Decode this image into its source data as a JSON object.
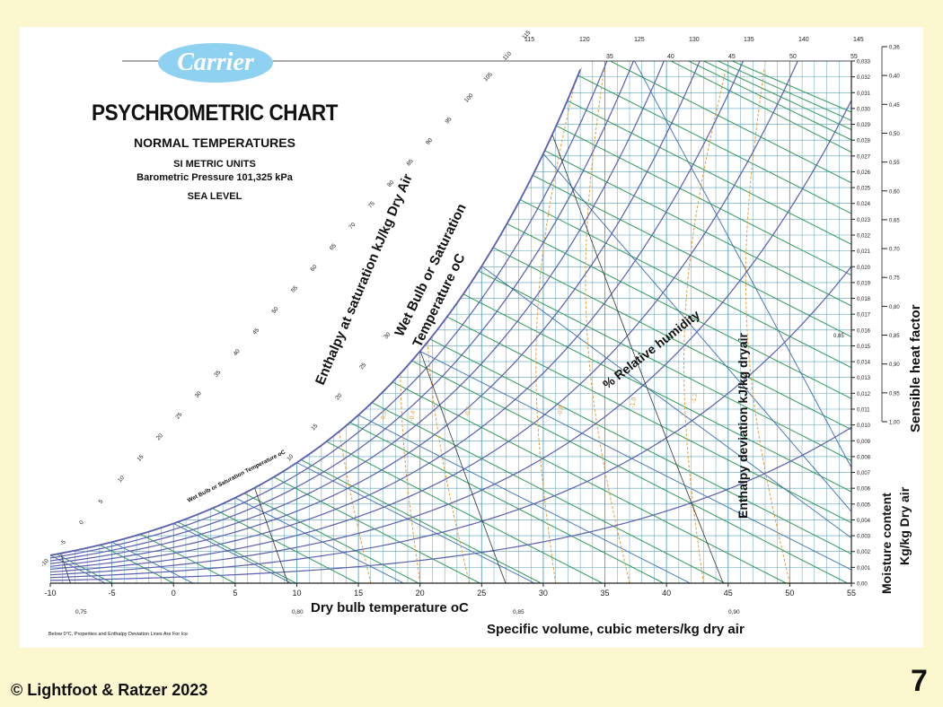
{
  "slide": {
    "copyright": "© Lightfoot & Ratzer 2023",
    "slide_number": "7",
    "background": "#fbf8d0"
  },
  "logo": {
    "text": "Carrier",
    "color": "#8fd1f0"
  },
  "title_block": {
    "title": "PSYCHROMETRIC CHART",
    "subtitle": "NORMAL TEMPERATURES",
    "units": "SI METRIC UNITS",
    "pressure": "Barometric Pressure 101,325 kPa",
    "level": "SEA LEVEL"
  },
  "chart_data": {
    "type": "line",
    "title": "PSYCHROMETRIC CHART",
    "xlabel": "Dry bulb temperature oC",
    "ylabel": "Moisture content Kg/kg Dry air",
    "xlim": [
      -10,
      55
    ],
    "ylim": [
      0,
      0.033
    ],
    "x_ticks": [
      -10,
      -5,
      0,
      5,
      10,
      15,
      20,
      25,
      30,
      35,
      40,
      45,
      50,
      55
    ],
    "x_tick_labels": [
      "-10",
      "-5",
      "0",
      "5",
      "10",
      "15",
      "20",
      "25",
      "30",
      "35",
      "40",
      "45",
      "50",
      "55"
    ],
    "y_ticks": [
      0,
      0.001,
      0.002,
      0.003,
      0.004,
      0.005,
      0.006,
      0.007,
      0.008,
      0.009,
      0.01,
      0.011,
      0.012,
      0.013,
      0.014,
      0.015,
      0.016,
      0.017,
      0.018,
      0.019,
      0.02,
      0.021,
      0.022,
      0.023,
      0.024,
      0.025,
      0.026,
      0.027,
      0.028,
      0.029,
      0.03,
      0.031,
      0.032,
      0.033
    ],
    "y_tick_labels": [
      "0,00",
      "0,001",
      "0,002",
      "0,003",
      "0,004",
      "0,005",
      "0,006",
      "0,007",
      "0,008",
      "0,009",
      "0,010",
      "0,011",
      "0,012",
      "0,013",
      "0,014",
      "0,015",
      "0,016",
      "0,017",
      "0,018",
      "0,019",
      "0,020",
      "0,021",
      "0,022",
      "0,023",
      "0,024",
      "0,025",
      "0,026",
      "0,027",
      "0,028",
      "0,029",
      "0,030",
      "0,031",
      "0,032",
      "0,033"
    ],
    "grid": true,
    "relative_humidity_lines": [
      10,
      20,
      30,
      40,
      50,
      60,
      70,
      80,
      90,
      100
    ],
    "enthalpy_scale": {
      "label": "Enthalpy at saturation kJ/kg Dry Air",
      "values": [
        -10,
        0,
        10,
        20,
        30,
        40,
        50,
        60,
        70,
        80,
        90,
        100,
        110,
        120,
        130,
        140
      ],
      "tick_labels": [
        "-10",
        "-5",
        "0",
        "5",
        "10",
        "15",
        "20",
        "25",
        "30",
        "35",
        "40",
        "45",
        "50",
        "55",
        "60",
        "65",
        "70",
        "75",
        "80",
        "85",
        "90",
        "95",
        "100",
        "105",
        "110",
        "115"
      ]
    },
    "top_enthalpy_labels": [
      "115",
      "120",
      "125",
      "130",
      "135",
      "140",
      "145"
    ],
    "top_wet_bulb_labels": [
      "35",
      "40",
      "45",
      "50",
      "55"
    ],
    "wet_bulb_label": "Wet Bulb or Saturation Temperature oC",
    "wet_bulb_label_small": "Wet Bulb or Saturation Temperature oC",
    "wet_bulb_scale_labels": [
      "10",
      "15",
      "20",
      "25",
      "30"
    ],
    "wet_bulb_lines": [
      -10,
      -5,
      0,
      5,
      10,
      15,
      20,
      25,
      30,
      35
    ],
    "rh_label": "% Relative humidity",
    "enthalpy_deviation_label": "Enthalpy deviation kJ/kg dryair",
    "enthalpy_deviation_values": [
      "-0,2",
      "-0,4",
      "-0,6",
      "-0,8",
      "-1,0",
      "-1,2"
    ],
    "specific_volume": {
      "label": "Specific volume, cubic meters/kg dry air",
      "values": [
        0.75,
        0.8,
        0.85,
        0.9
      ],
      "tick_labels": [
        "0,75",
        "0,80",
        "0,85",
        "0,90"
      ]
    },
    "sensible_heat_factor": {
      "label": "Sensible heat factor",
      "values": [
        "0,36",
        "0,40",
        "0,45",
        "0,50",
        "0,55",
        "0,60",
        "0,65",
        "0,70",
        "0,75",
        "0,80",
        "0,85",
        "0,90",
        "0,95",
        "1,00"
      ],
      "marker": "0,85"
    },
    "footnote": "Below 0°C,  Properties and Enthalpy Deviation Lines Are For Ice",
    "colors": {
      "grid": "#5aa0b8",
      "rh": "#5a5fb0",
      "enthalpy": "#2f9a5a",
      "wet_bulb": "#3a6fb0",
      "deviation": "#e0a040",
      "volume": "#333333"
    }
  }
}
